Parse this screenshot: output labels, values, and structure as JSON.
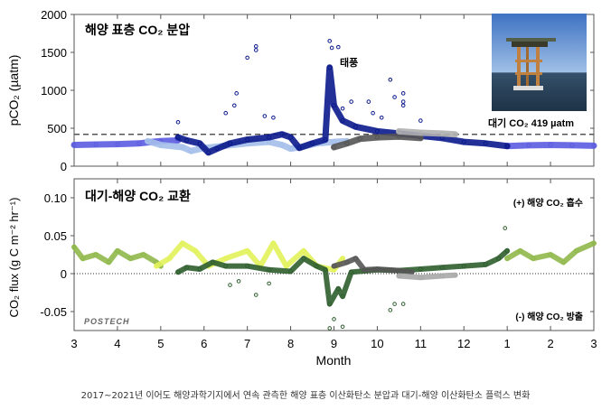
{
  "chart_data": [
    {
      "type": "scatter",
      "title": "해양 표층 CO₂ 분압",
      "ylabel": "pCO₂ (µatm)",
      "ylim": [
        0,
        2000
      ],
      "yticks": [
        "0",
        "500",
        "1000",
        "1500",
        "2000"
      ],
      "ytick_values": [
        0,
        500,
        1000,
        1500,
        2000
      ],
      "xlim": [
        3,
        15
      ],
      "annotations": {
        "typhoon": "태풍",
        "atm": "대기 CO₂ 419 µatm"
      },
      "reference_line": {
        "value": 419,
        "style": "dashed"
      },
      "series": [
        {
          "color": "#5b5be0",
          "points": [
            [
              3,
              280
            ],
            [
              3.5,
              285
            ],
            [
              4,
              290
            ],
            [
              4.5,
              300
            ],
            [
              4.8,
              320
            ],
            [
              5,
              330
            ],
            [
              5.4,
              340
            ]
          ]
        },
        {
          "color": "#5b5be0",
          "points": [
            [
              13,
              265
            ],
            [
              13.5,
              275
            ],
            [
              14,
              280
            ],
            [
              14.5,
              275
            ],
            [
              15,
              270
            ]
          ]
        },
        {
          "color": "#a4bfea",
          "points": [
            [
              4.7,
              330
            ],
            [
              5,
              280
            ],
            [
              5.5,
              250
            ],
            [
              5.7,
              200
            ],
            [
              6,
              240
            ],
            [
              6.5,
              270
            ],
            [
              7,
              300
            ],
            [
              7.5,
              320
            ],
            [
              7.8,
              280
            ],
            [
              8,
              230
            ],
            [
              8.3,
              260
            ],
            [
              8.6,
              300
            ],
            [
              9,
              320
            ],
            [
              9.3,
              330
            ]
          ]
        },
        {
          "color": "#0b1a8c",
          "points": [
            [
              5.4,
              380
            ],
            [
              5.6,
              340
            ],
            [
              5.9,
              300
            ],
            [
              6.1,
              180
            ],
            [
              6.3,
              230
            ],
            [
              6.6,
              300
            ],
            [
              7,
              350
            ],
            [
              7.5,
              380
            ],
            [
              7.8,
              420
            ],
            [
              8,
              380
            ],
            [
              8.2,
              240
            ],
            [
              8.5,
              300
            ],
            [
              8.8,
              350
            ],
            [
              8.9,
              1300
            ],
            [
              9,
              800
            ],
            [
              9.2,
              600
            ],
            [
              9.5,
              520
            ],
            [
              10,
              460
            ],
            [
              10.5,
              430
            ],
            [
              11,
              400
            ],
            [
              11.5,
              370
            ],
            [
              12,
              320
            ],
            [
              12.5,
              300
            ],
            [
              13,
              265
            ]
          ]
        },
        {
          "color": "#555555",
          "points": [
            [
              9,
              250
            ],
            [
              9.3,
              300
            ],
            [
              9.6,
              360
            ],
            [
              10,
              380
            ],
            [
              10.5,
              390
            ],
            [
              11,
              370
            ]
          ]
        },
        {
          "color": "#b0b0b0",
          "points": [
            [
              10.5,
              460
            ],
            [
              11,
              440
            ],
            [
              11.5,
              430
            ],
            [
              11.8,
              420
            ]
          ]
        }
      ],
      "outliers": {
        "color": "#0b1a8c",
        "points": [
          [
            5.4,
            580
          ],
          [
            6.5,
            700
          ],
          [
            6.7,
            800
          ],
          [
            6.75,
            960
          ],
          [
            7,
            1430
          ],
          [
            7.2,
            1580
          ],
          [
            7.2,
            1530
          ],
          [
            7.4,
            660
          ],
          [
            7.6,
            640
          ],
          [
            8.9,
            1650
          ],
          [
            8.95,
            1560
          ],
          [
            9.1,
            1570
          ],
          [
            9.4,
            850
          ],
          [
            9.8,
            850
          ],
          [
            10.3,
            1140
          ],
          [
            10.4,
            910
          ],
          [
            10.6,
            960
          ],
          [
            10.6,
            850
          ],
          [
            10.6,
            800
          ],
          [
            11,
            600
          ],
          [
            9.2,
            760
          ],
          [
            9.9,
            700
          ],
          [
            10.1,
            640
          ]
        ]
      }
    },
    {
      "type": "scatter",
      "title": "대기-해양 CO₂ 교환",
      "ylabel": "CO₂ flux (g C m⁻² hr⁻¹)",
      "xlabel": "Month",
      "ylim": [
        -0.075,
        0.125
      ],
      "yticks": [
        "-0.05",
        "0",
        "0.05",
        "0.10"
      ],
      "ytick_values": [
        -0.05,
        0,
        0.05,
        0.1
      ],
      "xlim": [
        3,
        15
      ],
      "xticks": [
        "3",
        "4",
        "5",
        "6",
        "7",
        "8",
        "9",
        "10",
        "11",
        "12",
        "1",
        "2",
        "3"
      ],
      "annotations": {
        "uptake": "(+) 해양 CO₂ 흡수",
        "release": "(-) 해양 CO₂ 방출"
      },
      "reference_line": {
        "value": 0,
        "style": "dotted"
      },
      "series": [
        {
          "color": "#8fb84a",
          "points": [
            [
              3,
              0.035
            ],
            [
              3.2,
              0.02
            ],
            [
              3.5,
              0.025
            ],
            [
              3.8,
              0.015
            ],
            [
              4,
              0.03
            ],
            [
              4.3,
              0.02
            ],
            [
              4.6,
              0.025
            ],
            [
              4.9,
              0.015
            ],
            [
              5,
              0.01
            ]
          ]
        },
        {
          "color": "#8fb84a",
          "points": [
            [
              13,
              0.02
            ],
            [
              13.3,
              0.03
            ],
            [
              13.6,
              0.02
            ],
            [
              14,
              0.025
            ],
            [
              14.3,
              0.015
            ],
            [
              14.6,
              0.03
            ],
            [
              15,
              0.04
            ]
          ]
        },
        {
          "color": "#e2f25a",
          "points": [
            [
              4.9,
              0.01
            ],
            [
              5.2,
              0.02
            ],
            [
              5.5,
              0.04
            ],
            [
              5.8,
              0.03
            ],
            [
              6.1,
              0.01
            ],
            [
              6.5,
              0.02
            ],
            [
              7,
              0.03
            ],
            [
              7.3,
              0.01
            ],
            [
              7.6,
              0.04
            ],
            [
              7.9,
              0.01
            ],
            [
              8.3,
              0.03
            ],
            [
              8.6,
              0.01
            ],
            [
              9,
              0.005
            ],
            [
              9.2,
              0.02
            ]
          ]
        },
        {
          "color": "#2e5e2e",
          "points": [
            [
              5.4,
              0.002
            ],
            [
              5.6,
              0.008
            ],
            [
              5.9,
              0.006
            ],
            [
              6.2,
              0.015
            ],
            [
              6.5,
              0.01
            ],
            [
              7,
              0.01
            ],
            [
              7.5,
              0.005
            ],
            [
              8,
              0.003
            ],
            [
              8.3,
              0.02
            ],
            [
              8.6,
              0.01
            ],
            [
              8.8,
              0.005
            ],
            [
              8.9,
              -0.04
            ],
            [
              9.1,
              -0.02
            ],
            [
              9.2,
              -0.03
            ],
            [
              9.4,
              0.002
            ],
            [
              10,
              0.005
            ],
            [
              10.5,
              0.004
            ],
            [
              11,
              0.006
            ],
            [
              11.5,
              0.008
            ],
            [
              12,
              0.01
            ],
            [
              12.5,
              0.012
            ],
            [
              12.8,
              0.02
            ],
            [
              13,
              0.03
            ]
          ]
        },
        {
          "color": "#555555",
          "points": [
            [
              9,
              0.01
            ],
            [
              9.3,
              0.015
            ],
            [
              9.5,
              0.02
            ],
            [
              9.7,
              0.005
            ],
            [
              10,
              0.006
            ],
            [
              10.5,
              0.004
            ],
            [
              10.8,
              0.002
            ]
          ]
        },
        {
          "color": "#a8a8a8",
          "points": [
            [
              10.5,
              -0.003
            ],
            [
              11,
              -0.005
            ],
            [
              11.5,
              -0.003
            ],
            [
              11.8,
              -0.002
            ]
          ]
        }
      ],
      "outliers": {
        "color": "#2e5e2e",
        "points": [
          [
            6.6,
            -0.015
          ],
          [
            6.8,
            -0.01
          ],
          [
            7.2,
            -0.028
          ],
          [
            7.5,
            -0.013
          ],
          [
            8.9,
            -0.072
          ],
          [
            9.2,
            -0.07
          ],
          [
            10.3,
            -0.048
          ],
          [
            10.4,
            -0.04
          ],
          [
            10.6,
            -0.04
          ],
          [
            9,
            -0.06
          ],
          [
            12.95,
            0.06
          ]
        ]
      }
    }
  ],
  "logo": "POSTECH",
  "caption": "2017~2021년 이어도 해양과학기지에서 연속 관측한 해양 표층 이산화탄소 분압과 대기-해양 이산화탄소 플럭스 변화"
}
